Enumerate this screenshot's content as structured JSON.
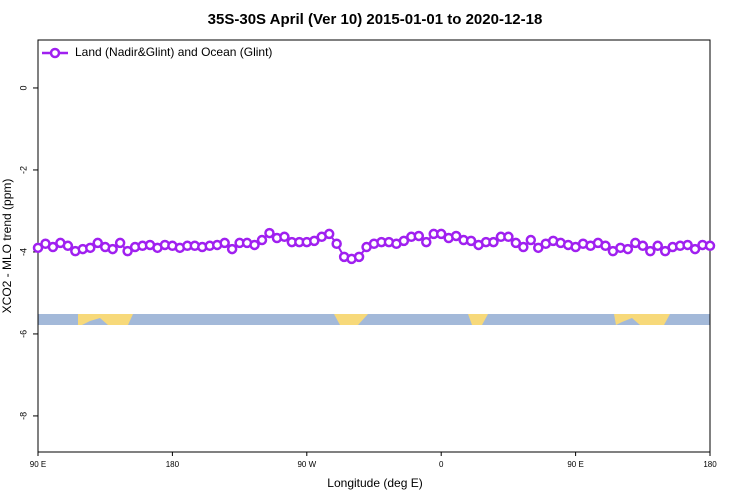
{
  "chart_data": {
    "type": "line",
    "title": "35S-30S April (Ver 10)   2015-01-01 to 2020-12-18",
    "x_label": "Longitude (deg E)",
    "y_label": "XCO2 - MLO trend (ppm)",
    "x": [
      90,
      95,
      100,
      105,
      110,
      115,
      120,
      125,
      130,
      135,
      140,
      145,
      150,
      155,
      160,
      165,
      170,
      175,
      180,
      185,
      190,
      195,
      200,
      205,
      210,
      215,
      220,
      225,
      230,
      235,
      240,
      245,
      250,
      255,
      260,
      265,
      270,
      275,
      280,
      285,
      290,
      295,
      300,
      305,
      310,
      315,
      320,
      325,
      330,
      335,
      340,
      345,
      350,
      355,
      360,
      365,
      370,
      375,
      380,
      385,
      390,
      395,
      400,
      405,
      410,
      415,
      420,
      425,
      430,
      435,
      440,
      445,
      450,
      455,
      460,
      465,
      470,
      475,
      480,
      485,
      490,
      495,
      500,
      505,
      510,
      515,
      520,
      525,
      530,
      535,
      540
    ],
    "series": [
      {
        "name": "Land (Nadir&Glint) and Ocean (Glint)",
        "color": "#a020f0",
        "values": [
          -3.9,
          -3.8,
          -3.88,
          -3.78,
          -3.85,
          -3.98,
          -3.93,
          -3.9,
          -3.78,
          -3.88,
          -3.93,
          -3.78,
          -3.98,
          -3.88,
          -3.85,
          -3.83,
          -3.9,
          -3.83,
          -3.85,
          -3.9,
          -3.85,
          -3.85,
          -3.88,
          -3.85,
          -3.83,
          -3.78,
          -3.93,
          -3.78,
          -3.78,
          -3.83,
          -3.71,
          -3.54,
          -3.66,
          -3.63,
          -3.76,
          -3.76,
          -3.76,
          -3.73,
          -3.63,
          -3.56,
          -3.8,
          -4.12,
          -4.17,
          -4.12,
          -3.88,
          -3.8,
          -3.76,
          -3.76,
          -3.8,
          -3.73,
          -3.63,
          -3.61,
          -3.76,
          -3.56,
          -3.56,
          -3.66,
          -3.61,
          -3.71,
          -3.73,
          -3.83,
          -3.76,
          -3.76,
          -3.63,
          -3.63,
          -3.78,
          -3.88,
          -3.71,
          -3.9,
          -3.8,
          -3.73,
          -3.78,
          -3.83,
          -3.88,
          -3.8,
          -3.85,
          -3.78,
          -3.85,
          -3.98,
          -3.9,
          -3.93,
          -3.78,
          -3.85,
          -3.98,
          -3.85,
          -3.98,
          -3.88,
          -3.85,
          -3.83,
          -3.93,
          -3.83,
          -3.85
        ]
      }
    ],
    "xlim": [
      90,
      540
    ],
    "xticks": [
      {
        "value": 90,
        "label": "90 E"
      },
      180,
      {
        "value": 270,
        "label": "90 W"
      },
      {
        "value": 360,
        "label": "0"
      },
      {
        "value": 450,
        "label": "90 E"
      },
      {
        "value": 540,
        "label": "180"
      }
    ],
    "ylim": [
      -8.88,
      1.17
    ],
    "yticks": [
      0,
      -2,
      -4,
      -6,
      -8
    ],
    "legend": "top-left"
  }
}
